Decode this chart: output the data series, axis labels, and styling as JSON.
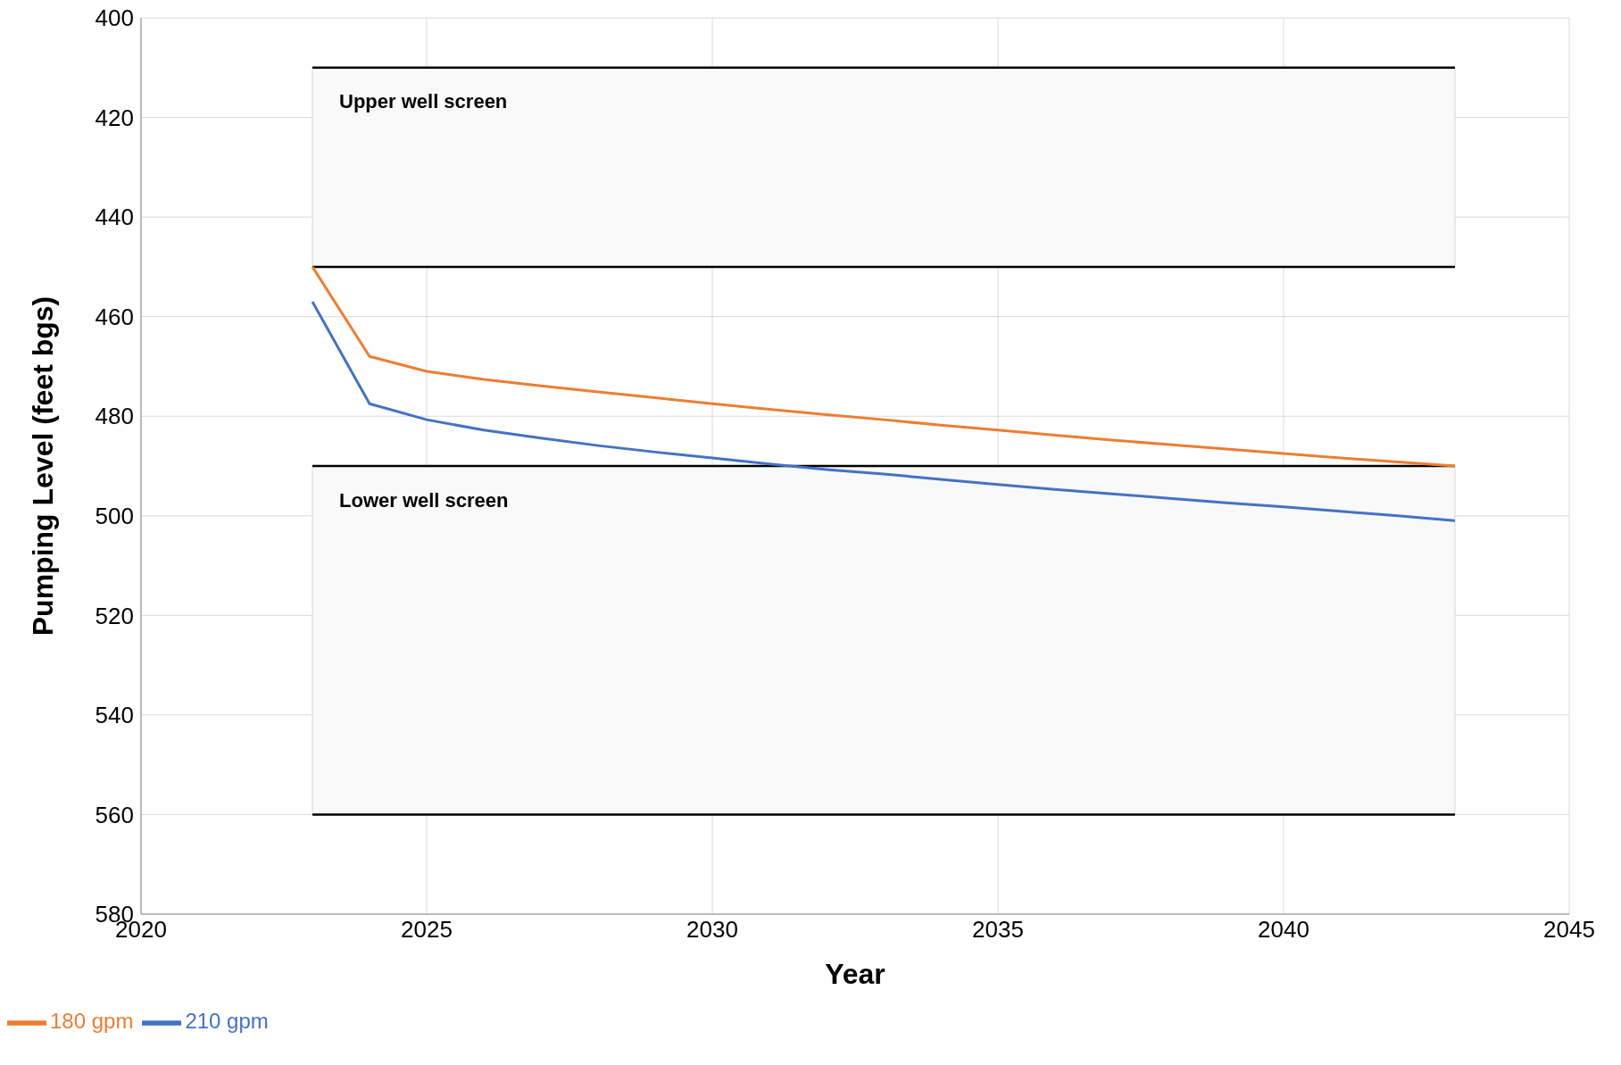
{
  "chart_data": {
    "type": "line",
    "xlabel": "Year",
    "ylabel": "Pumping Level (feet bgs)",
    "x": [
      2023,
      2024,
      2025,
      2026,
      2027,
      2028,
      2029,
      2030,
      2031,
      2032,
      2033,
      2034,
      2035,
      2036,
      2037,
      2038,
      2039,
      2040,
      2041,
      2042,
      2043
    ],
    "series": [
      {
        "name": "180 gpm",
        "color": "#ed7d31",
        "values": [
          450,
          468,
          471,
          472.6,
          473.9,
          475.1,
          476.3,
          477.5,
          478.6,
          479.7,
          480.7,
          481.8,
          482.8,
          483.8,
          484.8,
          485.7,
          486.6,
          487.5,
          488.4,
          489.2,
          490
        ]
      },
      {
        "name": "210 gpm",
        "color": "#4472c4",
        "values": [
          457,
          477.5,
          480.7,
          482.8,
          484.4,
          485.9,
          487.2,
          488.4,
          489.6,
          490.7,
          491.6,
          492.7,
          493.7,
          494.7,
          495.6,
          496.5,
          497.4,
          498.2,
          499.1,
          500,
          501
        ]
      }
    ],
    "bands": [
      {
        "axis": "y",
        "from": 410,
        "to": 450,
        "label": "Upper well screen",
        "color": "#f9f9f9"
      },
      {
        "axis": "y",
        "from": 490,
        "to": 560,
        "label": "Lower well screen",
        "color": "#f9f9f9"
      }
    ],
    "xlim": [
      2020,
      2045
    ],
    "xticks": [
      2020,
      2025,
      2030,
      2035,
      2040,
      2045
    ],
    "ylim": [
      580,
      400
    ],
    "yticks": [
      400,
      420,
      440,
      460,
      480,
      500,
      520,
      540,
      560,
      580
    ],
    "grid": true,
    "legend": "bottom left",
    "line_style": "solid",
    "marker": "none"
  }
}
